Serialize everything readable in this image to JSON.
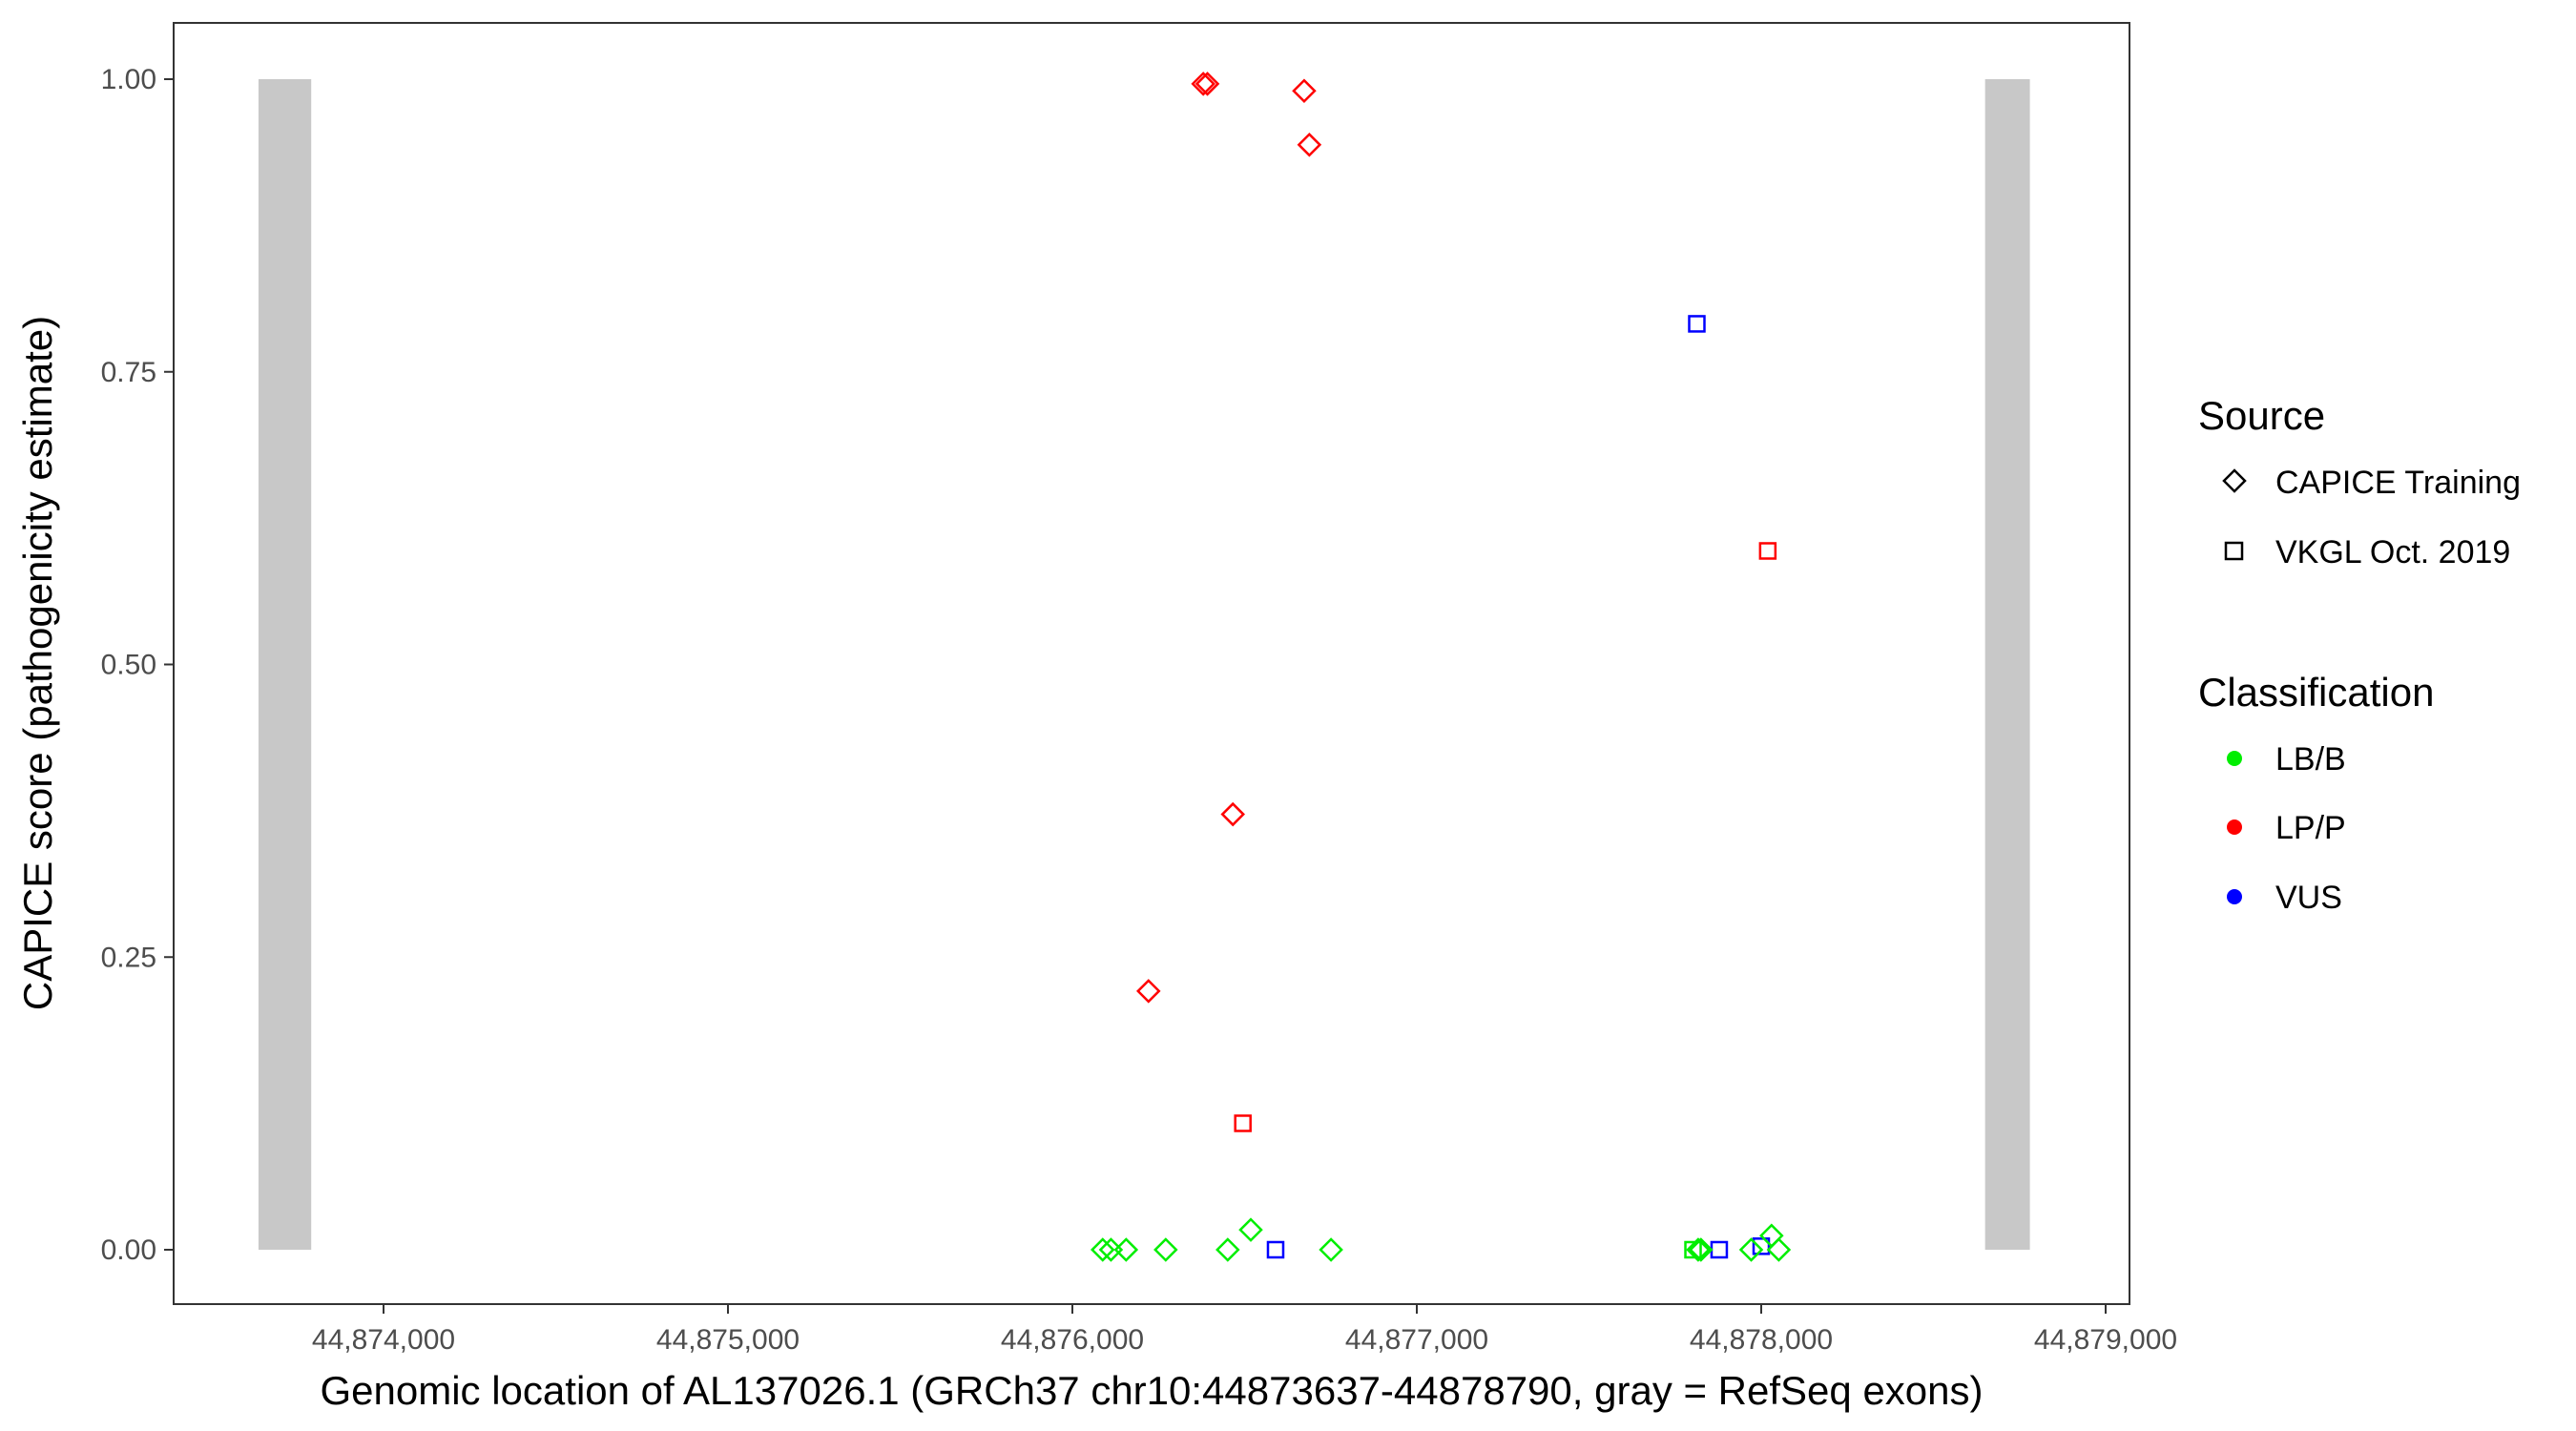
{
  "chart_data": {
    "type": "scatter",
    "title": "",
    "xlabel": "Genomic location of AL137026.1 (GRCh37 chr10:44873637-44878790, gray = RefSeq exons)",
    "ylabel": "CAPICE score (pathogenicity estimate)",
    "xlim": [
      44873650,
      44879050
    ],
    "ylim": [
      -0.047,
      1.048
    ],
    "xticks": [
      44874000,
      44875000,
      44876000,
      44877000,
      44878000,
      44879000
    ],
    "xtick_labels": [
      "44,874,000",
      "44,875,000",
      "44,876,000",
      "44,877,000",
      "44,878,000",
      "44,879,000"
    ],
    "yticks": [
      0,
      0.25,
      0.5,
      0.75,
      1.0
    ],
    "ytick_labels": [
      "0.00",
      "0.25",
      "0.50",
      "0.75",
      "1.00"
    ],
    "grid": false,
    "legend_position": "right",
    "exons": [
      {
        "start": 44873637,
        "end": 44873790,
        "ymin": 0,
        "ymax": 1
      },
      {
        "start": 44878650,
        "end": 44878780,
        "ymin": 0,
        "ymax": 1
      }
    ],
    "exon_color": "#c8c8c8",
    "legend": {
      "source_title": "Source",
      "source_items": [
        {
          "label": "CAPICE Training",
          "shape": "diamond"
        },
        {
          "label": "VKGL Oct. 2019",
          "shape": "square"
        }
      ],
      "class_title": "Classification",
      "class_items": [
        {
          "label": "LB/B",
          "color": "#00ee00"
        },
        {
          "label": "LP/P",
          "color": "#ff0000"
        },
        {
          "label": "VUS",
          "color": "#0000ff"
        }
      ]
    },
    "points": [
      {
        "x": 44876380,
        "y": 0.996,
        "source": "CAPICE Training",
        "class": "LP/P"
      },
      {
        "x": 44876392,
        "y": 0.996,
        "source": "CAPICE Training",
        "class": "LP/P"
      },
      {
        "x": 44876673,
        "y": 0.99,
        "source": "CAPICE Training",
        "class": "LP/P"
      },
      {
        "x": 44876688,
        "y": 0.944,
        "source": "CAPICE Training",
        "class": "LP/P"
      },
      {
        "x": 44876466,
        "y": 0.372,
        "source": "CAPICE Training",
        "class": "LP/P"
      },
      {
        "x": 44876221,
        "y": 0.221,
        "source": "CAPICE Training",
        "class": "LP/P"
      },
      {
        "x": 44876495,
        "y": 0.108,
        "source": "VKGL Oct. 2019",
        "class": "LP/P"
      },
      {
        "x": 44878019,
        "y": 0.597,
        "source": "VKGL Oct. 2019",
        "class": "LP/P"
      },
      {
        "x": 44877813,
        "y": 0.791,
        "source": "VKGL Oct. 2019",
        "class": "VUS"
      },
      {
        "x": 44876590,
        "y": 0.0,
        "source": "VKGL Oct. 2019",
        "class": "VUS"
      },
      {
        "x": 44877878,
        "y": 0.0,
        "source": "VKGL Oct. 2019",
        "class": "VUS"
      },
      {
        "x": 44878000,
        "y": 0.003,
        "source": "VKGL Oct. 2019",
        "class": "VUS"
      },
      {
        "x": 44876088,
        "y": 0.0,
        "source": "CAPICE Training",
        "class": "LB/B"
      },
      {
        "x": 44876112,
        "y": 0.0,
        "source": "CAPICE Training",
        "class": "LB/B"
      },
      {
        "x": 44876156,
        "y": 0.0,
        "source": "CAPICE Training",
        "class": "LB/B"
      },
      {
        "x": 44876271,
        "y": 0.0,
        "source": "CAPICE Training",
        "class": "LB/B"
      },
      {
        "x": 44876451,
        "y": 0.0,
        "source": "CAPICE Training",
        "class": "LB/B"
      },
      {
        "x": 44876518,
        "y": 0.017,
        "source": "CAPICE Training",
        "class": "LB/B"
      },
      {
        "x": 44876751,
        "y": 0.0,
        "source": "CAPICE Training",
        "class": "LB/B"
      },
      {
        "x": 44877802,
        "y": 0.0,
        "source": "VKGL Oct. 2019",
        "class": "LB/B"
      },
      {
        "x": 44877817,
        "y": 0.0,
        "source": "CAPICE Training",
        "class": "LB/B"
      },
      {
        "x": 44877825,
        "y": 0.0,
        "source": "CAPICE Training",
        "class": "LB/B"
      },
      {
        "x": 44877971,
        "y": 0.0,
        "source": "CAPICE Training",
        "class": "LB/B"
      },
      {
        "x": 44878030,
        "y": 0.012,
        "source": "CAPICE Training",
        "class": "LB/B"
      },
      {
        "x": 44878051,
        "y": 0.0,
        "source": "CAPICE Training",
        "class": "LB/B"
      }
    ]
  }
}
